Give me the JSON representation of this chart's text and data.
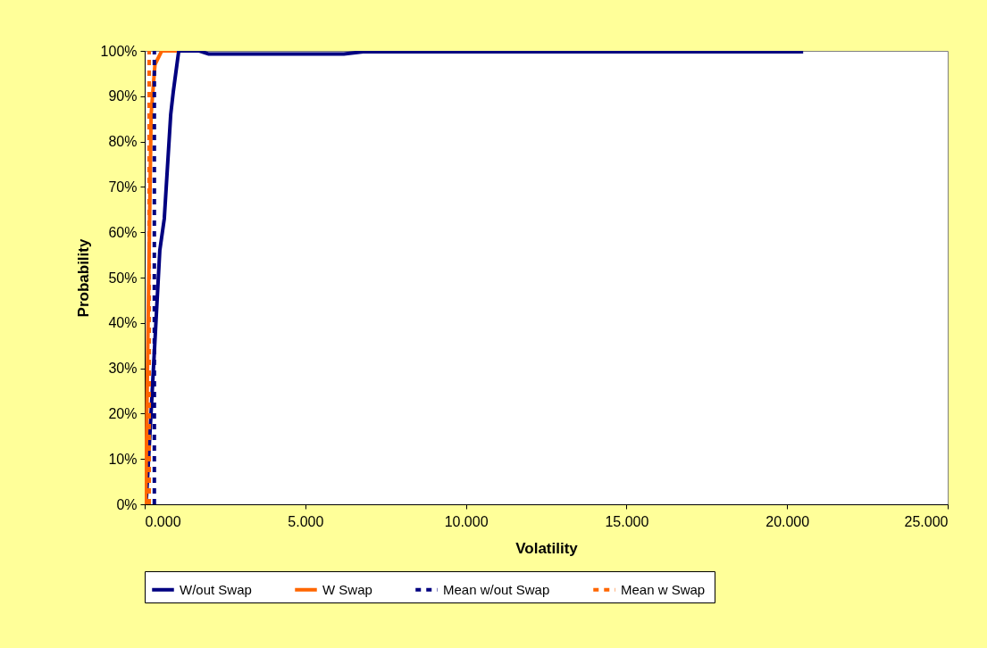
{
  "chart_data": {
    "type": "line",
    "xlabel": "Volatility",
    "ylabel": "Probability",
    "xlim": [
      0,
      25
    ],
    "ylim": [
      0,
      100
    ],
    "xticks": [
      {
        "value": 0,
        "label": "0.000"
      },
      {
        "value": 5,
        "label": "5.000"
      },
      {
        "value": 10,
        "label": "10.000"
      },
      {
        "value": 15,
        "label": "15.000"
      },
      {
        "value": 20,
        "label": "20.000"
      },
      {
        "value": 25,
        "label": "25.000"
      }
    ],
    "yticks": [
      {
        "value": 0,
        "label": "0%"
      },
      {
        "value": 10,
        "label": "10%"
      },
      {
        "value": 20,
        "label": "20%"
      },
      {
        "value": 30,
        "label": "30%"
      },
      {
        "value": 40,
        "label": "40%"
      },
      {
        "value": 50,
        "label": "50%"
      },
      {
        "value": 60,
        "label": "60%"
      },
      {
        "value": 70,
        "label": "70%"
      },
      {
        "value": 80,
        "label": "80%"
      },
      {
        "value": 90,
        "label": "90%"
      },
      {
        "value": 100,
        "label": "100%"
      }
    ],
    "grid": false,
    "legend": "bottom",
    "series": [
      {
        "name": "W/out Swap",
        "color": "#000080",
        "line_style": "solid",
        "x": [
          0.03,
          0.06,
          0.25,
          0.47,
          0.61,
          0.81,
          0.89,
          1.06,
          1.7,
          2.0,
          6.2,
          6.8,
          20.5
        ],
        "values": [
          0,
          2,
          27,
          56,
          63,
          86,
          91,
          100,
          100,
          99.3,
          99.3,
          99.8,
          99.8
        ]
      },
      {
        "name": "W Swap",
        "color": "#ff6600",
        "line_style": "solid",
        "x": [
          0.03,
          0.06,
          0.1,
          0.2,
          0.32,
          0.53,
          1.0
        ],
        "values": [
          0,
          16.5,
          37,
          86,
          97,
          100,
          100
        ]
      },
      {
        "name": "Mean w/out Swap",
        "color": "#000080",
        "line_style": "dashed",
        "x": [
          0.3,
          0.3
        ],
        "values": [
          0,
          100
        ]
      },
      {
        "name": "Mean w  Swap",
        "color": "#ff6600",
        "line_style": "dashed",
        "x": [
          0.14,
          0.14
        ],
        "values": [
          0,
          100
        ]
      }
    ]
  }
}
